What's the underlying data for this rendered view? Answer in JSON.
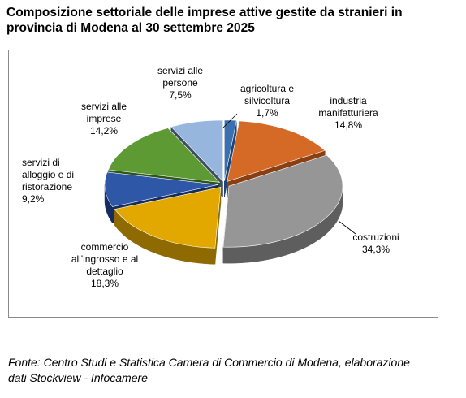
{
  "title_line1": "Composizione settoriale delle imprese attive gestite da stranieri in",
  "title_line2": "provincia di Modena al 30 settembre 2025",
  "source_line1": "Fonte: Centro Studi e Statistica Camera di Commercio di Modena, elaborazione",
  "source_line2": "dati Stockview - Infocamere",
  "chart_data": {
    "type": "pie",
    "style": "3d-exploded",
    "slices": [
      {
        "label_lines": [
          "agricoltura e",
          "silvicoltura",
          "1,7%"
        ],
        "value": 1.7,
        "color": "#3b6fb0",
        "side": "#1f4577"
      },
      {
        "label_lines": [
          "industria",
          "manifatturiera",
          "14,8%"
        ],
        "value": 14.8,
        "color": "#d46a26",
        "side": "#8a3f12"
      },
      {
        "label_lines": [
          "costruzioni",
          "34,3%"
        ],
        "value": 34.3,
        "color": "#969696",
        "side": "#5e5e5e"
      },
      {
        "label_lines": [
          "commercio",
          "all'ingrosso e al",
          "dettaglio",
          "18,3%"
        ],
        "value": 18.3,
        "color": "#e2a800",
        "side": "#8f6a00"
      },
      {
        "label_lines": [
          "servizi di",
          "alloggio e di",
          "ristorazione",
          "9,2%"
        ],
        "value": 9.2,
        "color": "#2e57a8",
        "side": "#152d5e"
      },
      {
        "label_lines": [
          "servizi alle",
          "imprese",
          "14,2%"
        ],
        "value": 14.2,
        "color": "#5e9a34",
        "side": "#2e5418"
      },
      {
        "label_lines": [
          "servizi alle",
          "persone",
          "7,5%"
        ],
        "value": 7.5,
        "color": "#97b6de",
        "side": "#3d4d63"
      }
    ]
  }
}
